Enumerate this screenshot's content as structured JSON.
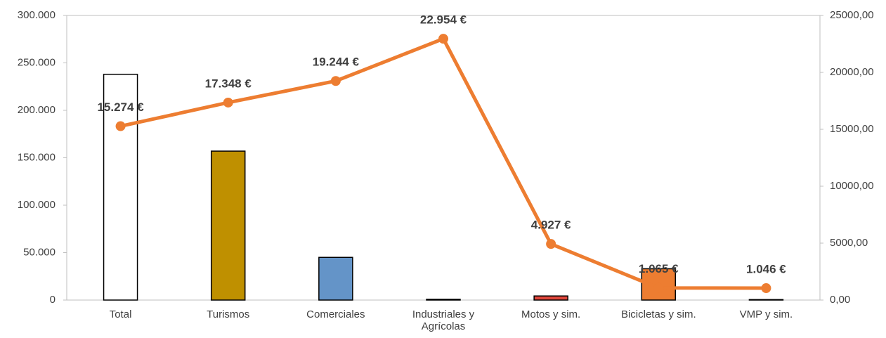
{
  "chart_data": {
    "type": "bar-line",
    "categories": [
      "Total",
      "Turismos",
      "Comerciales",
      "Industriales y Agrícolas",
      "Motos y sim.",
      "Bicicletas y sim.",
      "VMP y sim."
    ],
    "series": [
      {
        "type": "bar",
        "axis": "y",
        "colors": [
          "#ffffff",
          "#bf9000",
          "#6494c8",
          "#7f7f7f",
          "#e0463c",
          "#ed7d31",
          "#7f7f7f"
        ],
        "values": [
          238000,
          157000,
          45000,
          800,
          4300,
          33000,
          500
        ]
      },
      {
        "type": "line",
        "axis": "y2",
        "color": "#ed7d31",
        "values": [
          15274,
          17348,
          19244,
          22954,
          4927,
          1065,
          1046
        ],
        "value_labels": [
          "15.274 €",
          "17.348 €",
          "19.244 €",
          "22.954 €",
          "4.927 €",
          "1.065 €",
          "1.046 €"
        ]
      }
    ],
    "ylim": [
      0,
      300000
    ],
    "yticks": [
      0,
      {
        "value": 50000,
        "label": "50.000"
      },
      {
        "value": 100000,
        "label": "100.000"
      },
      {
        "value": 150000,
        "label": "150.000"
      },
      {
        "value": 200000,
        "label": "200.000"
      },
      {
        "value": 250000,
        "label": "250.000"
      },
      {
        "value": 300000,
        "label": "300.000"
      }
    ],
    "y2lim": [
      0,
      25000
    ],
    "y2ticks": [
      {
        "value": 0,
        "label": "0,00"
      },
      {
        "value": 5000,
        "label": "5000,00"
      },
      {
        "value": 10000,
        "label": "10000,00"
      },
      {
        "value": 15000,
        "label": "15000,00"
      },
      {
        "value": 20000,
        "label": "20000,00"
      },
      {
        "value": 25000,
        "label": "25000,00"
      }
    ]
  }
}
